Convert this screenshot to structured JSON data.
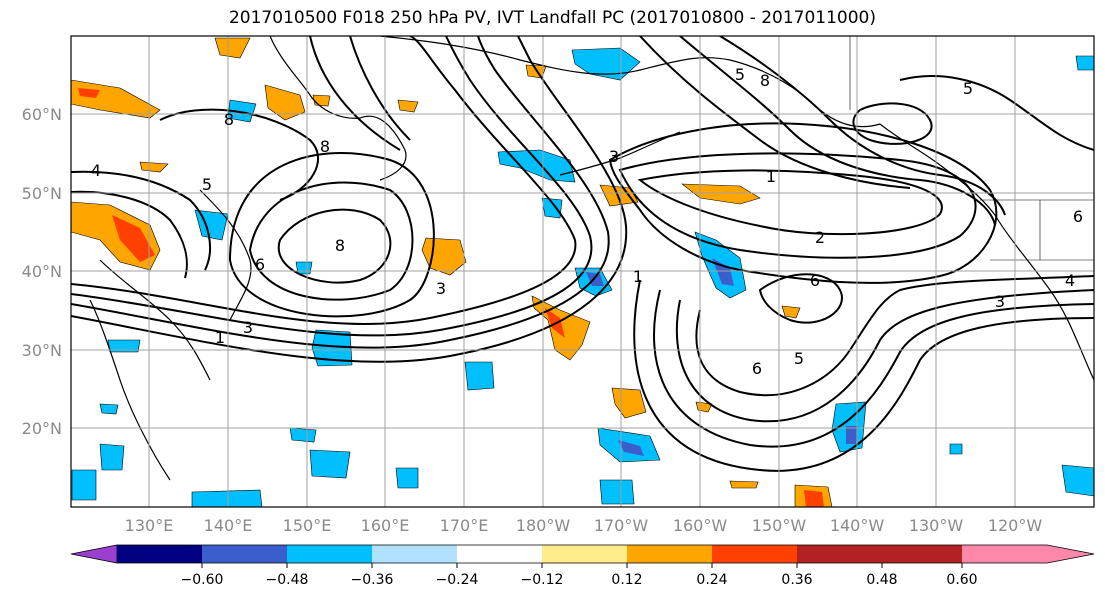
{
  "title": "2017010500 F018 250 hPa PV, IVT Landfall PC (2017010800 - 2017011000)",
  "map": {
    "lat_labels": [
      "60°N",
      "50°N",
      "40°N",
      "30°N",
      "20°N"
    ],
    "lon_labels": [
      "130°E",
      "140°E",
      "150°E",
      "160°E",
      "170°E",
      "180°W",
      "170°W",
      "160°W",
      "150°W",
      "140°W",
      "130°W",
      "120°W"
    ],
    "contour_labels": [
      "8",
      "8",
      "8",
      "8",
      "5",
      "5",
      "5",
      "4",
      "4",
      "6",
      "6",
      "6",
      "6",
      "3",
      "3",
      "3",
      "3",
      "1",
      "1",
      "1",
      "2",
      "5"
    ]
  },
  "colorbar": {
    "ticks": [
      "−0.60",
      "−0.48",
      "−0.36",
      "−0.24",
      "−0.12",
      "0.12",
      "0.24",
      "0.36",
      "0.48",
      "0.60"
    ],
    "colors": [
      "#9b3fd1",
      "#000080",
      "#3a5fcd",
      "#00bfff",
      "#b0e2ff",
      "#ffffff",
      "#ffec8b",
      "#ffa500",
      "#ff4000",
      "#b22222",
      "#ff88aa"
    ]
  }
}
